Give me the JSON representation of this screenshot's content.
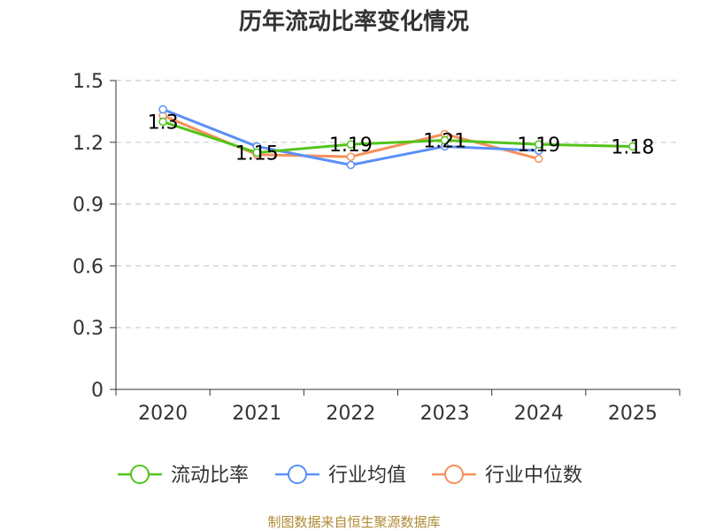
{
  "chart_data": {
    "type": "line",
    "title": "历年流动比率变化情况",
    "categories": [
      "2020",
      "2021",
      "2022",
      "2023",
      "2024",
      "2025"
    ],
    "y_ticks": [
      "0",
      "0.3",
      "0.6",
      "0.9",
      "1.2",
      "1.5"
    ],
    "ylim": [
      0,
      1.5
    ],
    "grid": true,
    "series": [
      {
        "name": "流动比率",
        "color": "#52c41a",
        "values": [
          1.3,
          1.15,
          1.19,
          1.21,
          1.19,
          1.18
        ],
        "labels": [
          "1.3",
          "1.15",
          "1.19",
          "1.21",
          "1.19",
          "1.18"
        ]
      },
      {
        "name": "行业均值",
        "color": "#5b8ff9",
        "values": [
          1.36,
          1.18,
          1.09,
          1.18,
          1.16,
          null
        ]
      },
      {
        "name": "行业中位数",
        "color": "#f6905a",
        "values": [
          1.33,
          1.14,
          1.13,
          1.24,
          1.12,
          null
        ]
      }
    ],
    "legend": [
      "流动比率",
      "行业均值",
      "行业中位数"
    ],
    "legend_position": "bottom",
    "source": "制图数据来自恒生聚源数据库"
  }
}
